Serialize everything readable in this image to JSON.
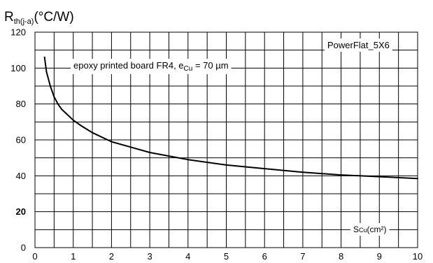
{
  "chart_data": {
    "type": "line",
    "ylabel": {
      "main": "R",
      "subscript": "th(j-a)",
      "unit": "(°C/W)"
    },
    "xlabel": {
      "main": "S",
      "subscript": "Cu",
      "unit": "(cm²)"
    },
    "xlim": [
      0,
      10
    ],
    "ylim": [
      0,
      120
    ],
    "x_ticks": [
      "0",
      "1",
      "2",
      "3",
      "4",
      "5",
      "6",
      "7",
      "8",
      "9",
      "10"
    ],
    "y_ticks": [
      "0",
      "20",
      "40",
      "60",
      "80",
      "100",
      "120"
    ],
    "grid": "on",
    "annotations": {
      "board": {
        "prefix": "epoxy printed board FR4, e",
        "subscript": "Cu",
        "suffix": " = 70 µm"
      },
      "package": "PowerFlat_5X6"
    },
    "series": [
      {
        "x": [
          0.25,
          0.3,
          0.4,
          0.5,
          0.6,
          0.7,
          0.8,
          1,
          1.2,
          1.5,
          2,
          2.5,
          3,
          3.5,
          4,
          5,
          6,
          7,
          8,
          9,
          10
        ],
        "y": [
          106,
          98,
          90,
          84,
          80,
          77,
          75,
          71,
          68,
          64,
          59,
          56,
          53,
          51,
          49,
          46,
          44,
          42,
          40.5,
          39.5,
          38.5
        ]
      }
    ]
  }
}
